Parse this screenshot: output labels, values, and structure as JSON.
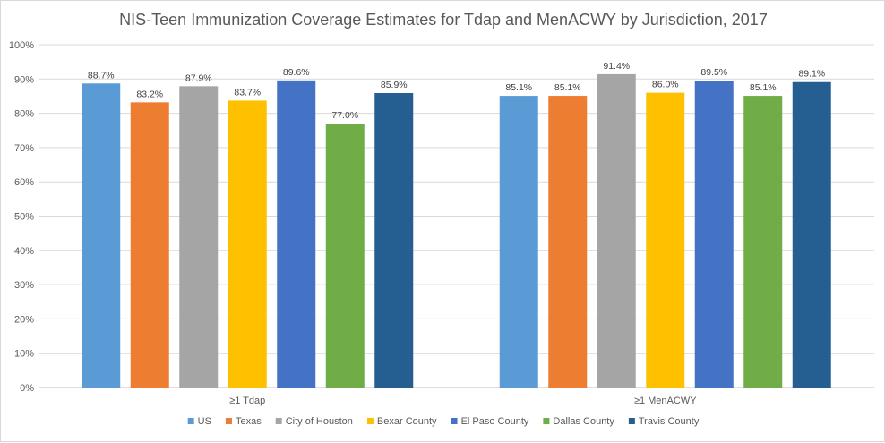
{
  "chart_data": {
    "type": "bar",
    "title": "NIS-Teen Immunization Coverage Estimates for Tdap and MenACWY by Jurisdiction, 2017",
    "xlabel": "",
    "ylabel": "",
    "categories": [
      "≥1 Tdap",
      "≥1 MenACWY"
    ],
    "ylim": [
      0,
      100
    ],
    "yticks": [
      "0%",
      "10%",
      "20%",
      "30%",
      "40%",
      "50%",
      "60%",
      "70%",
      "80%",
      "90%",
      "100%"
    ],
    "grid": true,
    "legend_position": "bottom",
    "series": [
      {
        "name": "US",
        "color": "#5B9BD5",
        "values": [
          88.7,
          85.1
        ],
        "labels": [
          "88.7%",
          "85.1%"
        ]
      },
      {
        "name": "Texas",
        "color": "#ED7D31",
        "values": [
          83.2,
          85.1
        ],
        "labels": [
          "83.2%",
          "85.1%"
        ]
      },
      {
        "name": "City of Houston",
        "color": "#A5A5A5",
        "values": [
          87.9,
          91.4
        ],
        "labels": [
          "87.9%",
          "91.4%"
        ]
      },
      {
        "name": "Bexar County",
        "color": "#FFC000",
        "values": [
          83.7,
          86.0
        ],
        "labels": [
          "83.7%",
          "86.0%"
        ]
      },
      {
        "name": "El Paso County",
        "color": "#4472C4",
        "values": [
          89.6,
          89.5
        ],
        "labels": [
          "89.6%",
          "89.5%"
        ]
      },
      {
        "name": "Dallas County",
        "color": "#70AD47",
        "values": [
          77.0,
          85.1
        ],
        "labels": [
          "77.0%",
          "85.1%"
        ]
      },
      {
        "name": "Travis County",
        "color": "#255E91",
        "values": [
          85.9,
          89.1
        ],
        "labels": [
          "85.9%",
          "89.1%"
        ]
      }
    ]
  }
}
